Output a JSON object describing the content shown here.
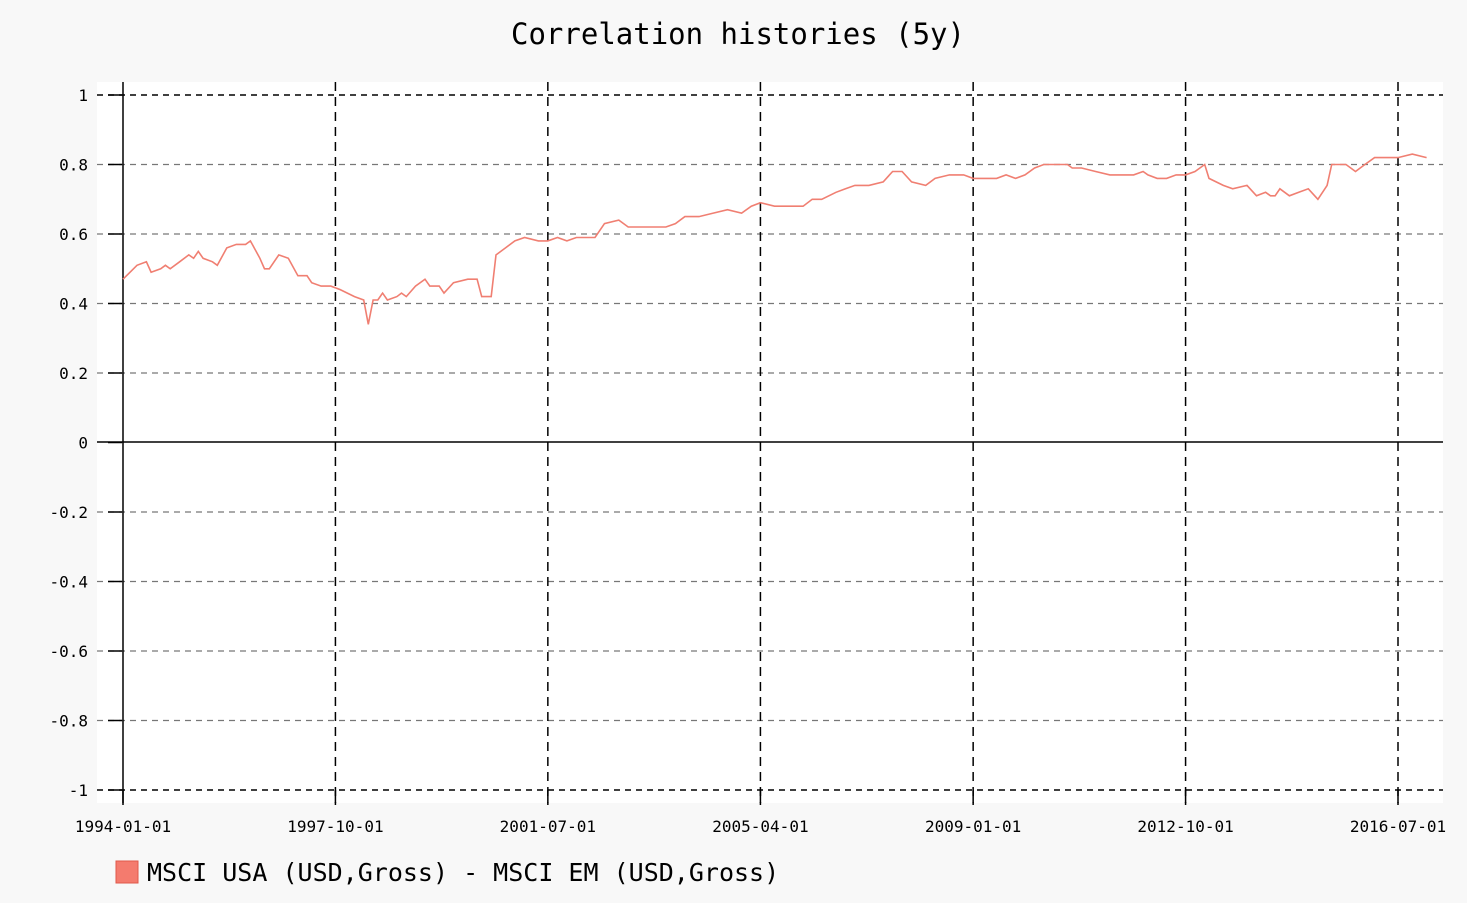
{
  "chart_data": {
    "type": "line",
    "title": "Correlation histories (5y)",
    "xlabel": "",
    "ylabel": "",
    "ylim": [
      -1,
      1
    ],
    "xlim": [
      "1993-11-01",
      "2017-02-01"
    ],
    "y_ticks": [
      1,
      0.8,
      0.6,
      0.4,
      0.2,
      0,
      -0.2,
      -0.4,
      -0.6,
      -0.8,
      -1
    ],
    "y_tick_labels": [
      "1",
      "0.8",
      "0.6",
      "0.4",
      "0.2",
      "0",
      "-0.2",
      "-0.4",
      "-0.6",
      "-0.8",
      "-1"
    ],
    "x_ticks": [
      "1994-01-01",
      "1997-10-01",
      "2001-07-01",
      "2005-04-01",
      "2009-01-01",
      "2012-10-01",
      "2016-07-01"
    ],
    "grid": true,
    "legend_position": "bottom-left",
    "series": [
      {
        "name": "MSCI USA (USD,Gross) - MSCI EM (USD,Gross)",
        "color": "#f07f72",
        "points": [
          [
            "1994-01-01",
            0.47
          ],
          [
            "1994-04-01",
            0.51
          ],
          [
            "1994-06-01",
            0.52
          ],
          [
            "1994-07-01",
            0.49
          ],
          [
            "1994-09-01",
            0.5
          ],
          [
            "1994-10-01",
            0.51
          ],
          [
            "1994-11-01",
            0.5
          ],
          [
            "1995-01-01",
            0.52
          ],
          [
            "1995-03-01",
            0.54
          ],
          [
            "1995-04-01",
            0.53
          ],
          [
            "1995-05-01",
            0.55
          ],
          [
            "1995-06-01",
            0.53
          ],
          [
            "1995-08-01",
            0.52
          ],
          [
            "1995-09-01",
            0.51
          ],
          [
            "1995-11-01",
            0.56
          ],
          [
            "1996-01-01",
            0.57
          ],
          [
            "1996-03-01",
            0.57
          ],
          [
            "1996-04-01",
            0.58
          ],
          [
            "1996-06-01",
            0.53
          ],
          [
            "1996-07-01",
            0.5
          ],
          [
            "1996-08-01",
            0.5
          ],
          [
            "1996-10-01",
            0.54
          ],
          [
            "1996-12-01",
            0.53
          ],
          [
            "1997-02-01",
            0.48
          ],
          [
            "1997-04-01",
            0.48
          ],
          [
            "1997-05-01",
            0.46
          ],
          [
            "1997-07-01",
            0.45
          ],
          [
            "1997-09-01",
            0.45
          ],
          [
            "1997-11-01",
            0.44
          ],
          [
            "1998-02-01",
            0.42
          ],
          [
            "1998-04-01",
            0.41
          ],
          [
            "1998-05-01",
            0.34
          ],
          [
            "1998-06-01",
            0.41
          ],
          [
            "1998-07-01",
            0.41
          ],
          [
            "1998-08-01",
            0.43
          ],
          [
            "1998-09-01",
            0.41
          ],
          [
            "1998-11-01",
            0.42
          ],
          [
            "1998-12-01",
            0.43
          ],
          [
            "1999-01-01",
            0.42
          ],
          [
            "1999-03-01",
            0.45
          ],
          [
            "1999-05-01",
            0.47
          ],
          [
            "1999-06-01",
            0.45
          ],
          [
            "1999-08-01",
            0.45
          ],
          [
            "1999-09-01",
            0.43
          ],
          [
            "1999-11-01",
            0.46
          ],
          [
            "2000-02-01",
            0.47
          ],
          [
            "2000-04-01",
            0.47
          ],
          [
            "2000-05-01",
            0.42
          ],
          [
            "2000-07-01",
            0.42
          ],
          [
            "2000-08-01",
            0.54
          ],
          [
            "2000-10-01",
            0.56
          ],
          [
            "2000-12-01",
            0.58
          ],
          [
            "2001-02-01",
            0.59
          ],
          [
            "2001-05-01",
            0.58
          ],
          [
            "2001-07-01",
            0.58
          ],
          [
            "2001-09-01",
            0.59
          ],
          [
            "2001-11-01",
            0.58
          ],
          [
            "2002-01-01",
            0.59
          ],
          [
            "2002-03-01",
            0.59
          ],
          [
            "2002-05-01",
            0.59
          ],
          [
            "2002-07-01",
            0.63
          ],
          [
            "2002-10-01",
            0.64
          ],
          [
            "2002-12-01",
            0.62
          ],
          [
            "2003-03-01",
            0.62
          ],
          [
            "2003-06-01",
            0.62
          ],
          [
            "2003-08-01",
            0.62
          ],
          [
            "2003-10-01",
            0.63
          ],
          [
            "2003-12-01",
            0.65
          ],
          [
            "2004-03-01",
            0.65
          ],
          [
            "2004-06-01",
            0.66
          ],
          [
            "2004-09-01",
            0.67
          ],
          [
            "2004-12-01",
            0.66
          ],
          [
            "2005-02-01",
            0.68
          ],
          [
            "2005-04-01",
            0.69
          ],
          [
            "2005-07-01",
            0.68
          ],
          [
            "2005-10-01",
            0.68
          ],
          [
            "2006-01-01",
            0.68
          ],
          [
            "2006-03-01",
            0.7
          ],
          [
            "2006-05-01",
            0.7
          ],
          [
            "2006-08-01",
            0.72
          ],
          [
            "2006-10-01",
            0.73
          ],
          [
            "2006-12-01",
            0.74
          ],
          [
            "2007-03-01",
            0.74
          ],
          [
            "2007-06-01",
            0.75
          ],
          [
            "2007-08-01",
            0.78
          ],
          [
            "2007-10-01",
            0.78
          ],
          [
            "2007-12-01",
            0.75
          ],
          [
            "2008-03-01",
            0.74
          ],
          [
            "2008-05-01",
            0.76
          ],
          [
            "2008-08-01",
            0.77
          ],
          [
            "2008-11-01",
            0.77
          ],
          [
            "2009-01-01",
            0.76
          ],
          [
            "2009-04-01",
            0.76
          ],
          [
            "2009-06-01",
            0.76
          ],
          [
            "2009-08-01",
            0.77
          ],
          [
            "2009-10-01",
            0.76
          ],
          [
            "2009-12-01",
            0.77
          ],
          [
            "2010-02-01",
            0.79
          ],
          [
            "2010-04-01",
            0.8
          ],
          [
            "2010-07-01",
            0.8
          ],
          [
            "2010-09-01",
            0.8
          ],
          [
            "2010-10-01",
            0.79
          ],
          [
            "2010-12-01",
            0.79
          ],
          [
            "2011-03-01",
            0.78
          ],
          [
            "2011-06-01",
            0.77
          ],
          [
            "2011-09-01",
            0.77
          ],
          [
            "2011-11-01",
            0.77
          ],
          [
            "2012-01-01",
            0.78
          ],
          [
            "2012-02-01",
            0.77
          ],
          [
            "2012-04-01",
            0.76
          ],
          [
            "2012-06-01",
            0.76
          ],
          [
            "2012-08-01",
            0.77
          ],
          [
            "2012-10-01",
            0.77
          ],
          [
            "2012-12-01",
            0.78
          ],
          [
            "2013-02-01",
            0.8
          ],
          [
            "2013-03-01",
            0.76
          ],
          [
            "2013-06-01",
            0.74
          ],
          [
            "2013-08-01",
            0.73
          ],
          [
            "2013-11-01",
            0.74
          ],
          [
            "2014-01-01",
            0.71
          ],
          [
            "2014-03-01",
            0.72
          ],
          [
            "2014-04-01",
            0.71
          ],
          [
            "2014-05-01",
            0.71
          ],
          [
            "2014-06-01",
            0.73
          ],
          [
            "2014-08-01",
            0.71
          ],
          [
            "2014-10-01",
            0.72
          ],
          [
            "2014-12-01",
            0.73
          ],
          [
            "2015-02-01",
            0.7
          ],
          [
            "2015-04-01",
            0.74
          ],
          [
            "2015-05-01",
            0.8
          ],
          [
            "2015-08-01",
            0.8
          ],
          [
            "2015-10-01",
            0.78
          ],
          [
            "2015-12-01",
            0.8
          ],
          [
            "2016-02-01",
            0.82
          ],
          [
            "2016-05-01",
            0.82
          ],
          [
            "2016-07-01",
            0.82
          ],
          [
            "2016-10-01",
            0.83
          ],
          [
            "2017-01-01",
            0.82
          ]
        ]
      }
    ]
  }
}
